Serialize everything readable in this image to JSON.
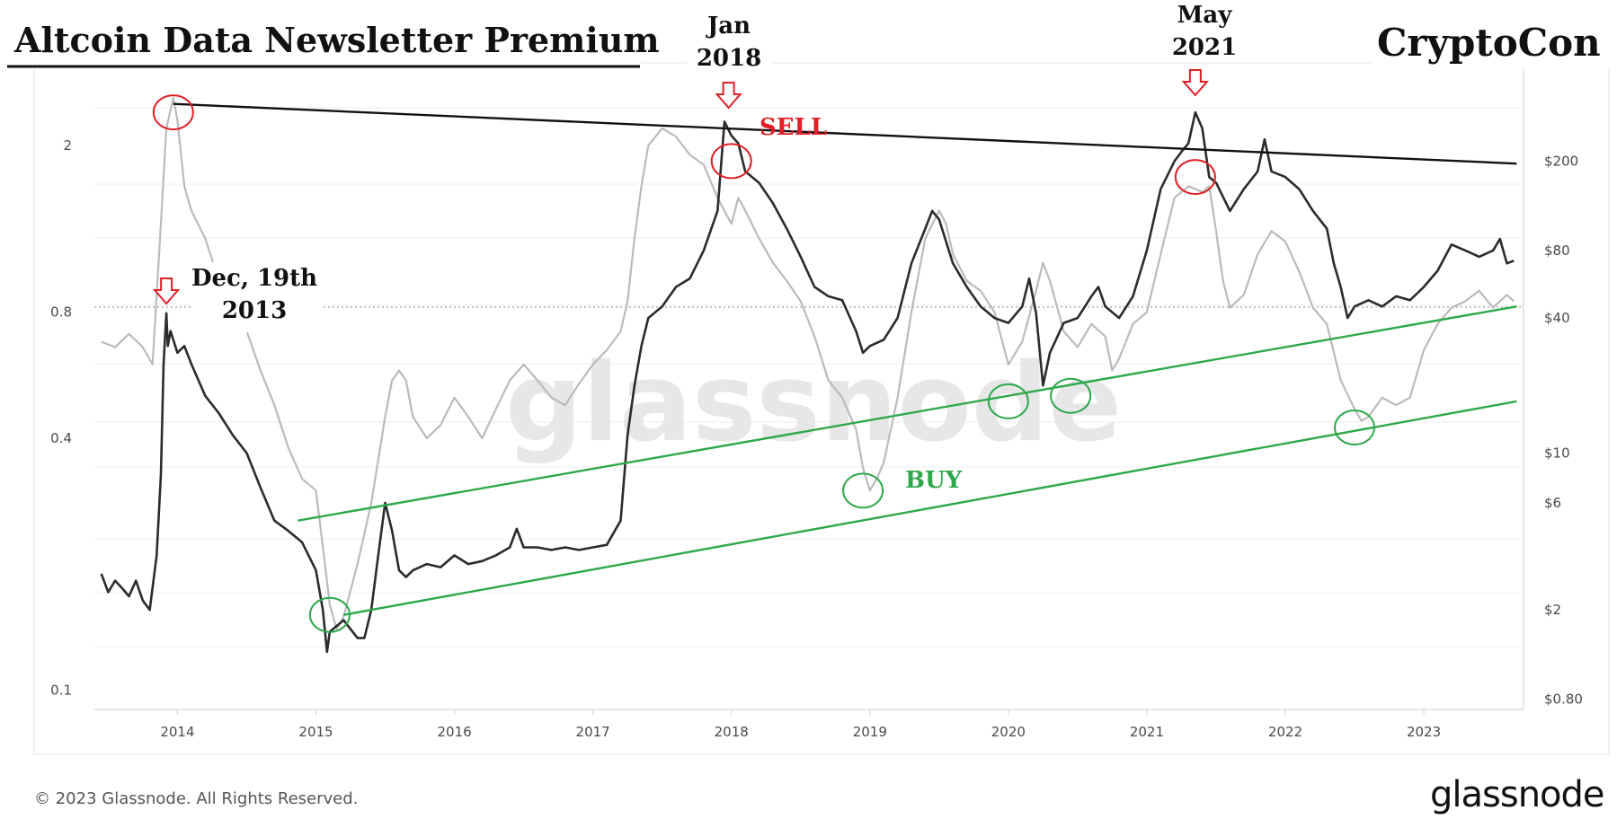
{
  "header": {
    "newsletter_title": "Altcoin Data Newsletter Premium",
    "author": "CryptoCon"
  },
  "watermark": "glassnode",
  "footer": {
    "copyright": "© 2023 Glassnode. All Rights Reserved.",
    "brand": "glassnode"
  },
  "colors": {
    "metric_line": "#bbbbbb",
    "price_line": "#2b2b2b",
    "sell": "#e01f26",
    "buy": "#2ea84a",
    "trend_top": "#111111"
  },
  "chart_data": {
    "type": "line",
    "x_ticks": [
      "2014",
      "2015",
      "2016",
      "2017",
      "2018",
      "2019",
      "2020",
      "2021",
      "2022",
      "2023"
    ],
    "y_left": {
      "scale": "log",
      "ticks": [
        "2",
        "0.8",
        "0.4",
        "0.1"
      ],
      "values": [
        2,
        0.8,
        0.4,
        0.1
      ]
    },
    "y_right": {
      "scale": "log",
      "ticks": [
        "$200",
        "$80",
        "$40",
        "$10",
        "$6",
        "$2",
        "$0.80"
      ],
      "values": [
        200,
        80,
        40,
        10,
        6,
        2,
        0.8
      ]
    },
    "series": [
      {
        "axis": "left",
        "color": "#bbbbbb",
        "points": [
          [
            2013.45,
            0.68
          ],
          [
            2013.55,
            0.66
          ],
          [
            2013.65,
            0.71
          ],
          [
            2013.75,
            0.66
          ],
          [
            2013.82,
            0.6
          ],
          [
            2013.88,
            1.3
          ],
          [
            2013.92,
            2.2
          ],
          [
            2013.97,
            2.6
          ],
          [
            2014.0,
            2.3
          ],
          [
            2014.05,
            1.6
          ],
          [
            2014.1,
            1.4
          ],
          [
            2014.2,
            1.2
          ],
          [
            2014.3,
            0.95
          ],
          [
            2014.4,
            0.85
          ],
          [
            2014.5,
            0.72
          ],
          [
            2014.6,
            0.58
          ],
          [
            2014.7,
            0.48
          ],
          [
            2014.8,
            0.38
          ],
          [
            2014.9,
            0.32
          ],
          [
            2015.0,
            0.3
          ],
          [
            2015.05,
            0.22
          ],
          [
            2015.1,
            0.16
          ],
          [
            2015.15,
            0.14
          ],
          [
            2015.2,
            0.15
          ],
          [
            2015.3,
            0.2
          ],
          [
            2015.4,
            0.28
          ],
          [
            2015.5,
            0.45
          ],
          [
            2015.55,
            0.55
          ],
          [
            2015.6,
            0.58
          ],
          [
            2015.65,
            0.55
          ],
          [
            2015.7,
            0.45
          ],
          [
            2015.8,
            0.4
          ],
          [
            2015.9,
            0.43
          ],
          [
            2016.0,
            0.5
          ],
          [
            2016.1,
            0.45
          ],
          [
            2016.2,
            0.4
          ],
          [
            2016.3,
            0.47
          ],
          [
            2016.4,
            0.55
          ],
          [
            2016.5,
            0.6
          ],
          [
            2016.6,
            0.55
          ],
          [
            2016.7,
            0.5
          ],
          [
            2016.8,
            0.48
          ],
          [
            2016.9,
            0.54
          ],
          [
            2017.0,
            0.6
          ],
          [
            2017.1,
            0.65
          ],
          [
            2017.2,
            0.72
          ],
          [
            2017.25,
            0.85
          ],
          [
            2017.3,
            1.2
          ],
          [
            2017.35,
            1.6
          ],
          [
            2017.4,
            2.0
          ],
          [
            2017.5,
            2.2
          ],
          [
            2017.6,
            2.1
          ],
          [
            2017.7,
            1.9
          ],
          [
            2017.8,
            1.8
          ],
          [
            2017.9,
            1.5
          ],
          [
            2018.0,
            1.3
          ],
          [
            2018.05,
            1.5
          ],
          [
            2018.1,
            1.4
          ],
          [
            2018.2,
            1.2
          ],
          [
            2018.3,
            1.05
          ],
          [
            2018.4,
            0.95
          ],
          [
            2018.5,
            0.85
          ],
          [
            2018.6,
            0.7
          ],
          [
            2018.7,
            0.55
          ],
          [
            2018.8,
            0.5
          ],
          [
            2018.9,
            0.42
          ],
          [
            2018.95,
            0.34
          ],
          [
            2019.0,
            0.3
          ],
          [
            2019.05,
            0.32
          ],
          [
            2019.1,
            0.35
          ],
          [
            2019.2,
            0.5
          ],
          [
            2019.3,
            0.8
          ],
          [
            2019.4,
            1.2
          ],
          [
            2019.5,
            1.4
          ],
          [
            2019.55,
            1.3
          ],
          [
            2019.6,
            1.1
          ],
          [
            2019.7,
            0.95
          ],
          [
            2019.8,
            0.9
          ],
          [
            2019.9,
            0.8
          ],
          [
            2020.0,
            0.6
          ],
          [
            2020.1,
            0.68
          ],
          [
            2020.2,
            0.9
          ],
          [
            2020.25,
            1.05
          ],
          [
            2020.3,
            0.95
          ],
          [
            2020.4,
            0.72
          ],
          [
            2020.5,
            0.66
          ],
          [
            2020.6,
            0.75
          ],
          [
            2020.7,
            0.7
          ],
          [
            2020.75,
            0.58
          ],
          [
            2020.8,
            0.62
          ],
          [
            2020.9,
            0.75
          ],
          [
            2021.0,
            0.8
          ],
          [
            2021.1,
            1.1
          ],
          [
            2021.2,
            1.5
          ],
          [
            2021.3,
            1.6
          ],
          [
            2021.4,
            1.55
          ],
          [
            2021.45,
            1.6
          ],
          [
            2021.5,
            1.25
          ],
          [
            2021.55,
            0.95
          ],
          [
            2021.6,
            0.82
          ],
          [
            2021.7,
            0.88
          ],
          [
            2021.8,
            1.1
          ],
          [
            2021.9,
            1.25
          ],
          [
            2022.0,
            1.18
          ],
          [
            2022.1,
            1.0
          ],
          [
            2022.2,
            0.82
          ],
          [
            2022.3,
            0.75
          ],
          [
            2022.4,
            0.55
          ],
          [
            2022.5,
            0.47
          ],
          [
            2022.55,
            0.44
          ],
          [
            2022.6,
            0.45
          ],
          [
            2022.7,
            0.5
          ],
          [
            2022.8,
            0.48
          ],
          [
            2022.9,
            0.5
          ],
          [
            2023.0,
            0.65
          ],
          [
            2023.1,
            0.75
          ],
          [
            2023.2,
            0.82
          ],
          [
            2023.3,
            0.85
          ],
          [
            2023.4,
            0.9
          ],
          [
            2023.5,
            0.82
          ],
          [
            2023.6,
            0.88
          ],
          [
            2023.65,
            0.85
          ]
        ]
      },
      {
        "axis": "right",
        "color": "#2b2b2b",
        "points": [
          [
            2013.45,
            2.9
          ],
          [
            2013.5,
            2.4
          ],
          [
            2013.55,
            2.7
          ],
          [
            2013.6,
            2.5
          ],
          [
            2013.65,
            2.3
          ],
          [
            2013.7,
            2.7
          ],
          [
            2013.75,
            2.2
          ],
          [
            2013.8,
            2.0
          ],
          [
            2013.85,
            3.5
          ],
          [
            2013.88,
            8
          ],
          [
            2013.9,
            25
          ],
          [
            2013.92,
            42
          ],
          [
            2013.93,
            30
          ],
          [
            2013.95,
            35
          ],
          [
            2013.97,
            32
          ],
          [
            2014.0,
            28
          ],
          [
            2014.05,
            30
          ],
          [
            2014.1,
            25
          ],
          [
            2014.2,
            18
          ],
          [
            2014.3,
            15
          ],
          [
            2014.4,
            12
          ],
          [
            2014.5,
            10
          ],
          [
            2014.6,
            7
          ],
          [
            2014.7,
            5
          ],
          [
            2014.8,
            4.5
          ],
          [
            2014.9,
            4
          ],
          [
            2015.0,
            3
          ],
          [
            2015.05,
            2
          ],
          [
            2015.08,
            1.3
          ],
          [
            2015.1,
            1.6
          ],
          [
            2015.2,
            1.8
          ],
          [
            2015.3,
            1.5
          ],
          [
            2015.35,
            1.5
          ],
          [
            2015.4,
            2
          ],
          [
            2015.45,
            3.5
          ],
          [
            2015.5,
            6
          ],
          [
            2015.55,
            4.5
          ],
          [
            2015.6,
            3
          ],
          [
            2015.65,
            2.8
          ],
          [
            2015.7,
            3
          ],
          [
            2015.8,
            3.2
          ],
          [
            2015.9,
            3.1
          ],
          [
            2016.0,
            3.5
          ],
          [
            2016.1,
            3.2
          ],
          [
            2016.2,
            3.3
          ],
          [
            2016.3,
            3.5
          ],
          [
            2016.4,
            3.8
          ],
          [
            2016.45,
            4.6
          ],
          [
            2016.5,
            3.8
          ],
          [
            2016.6,
            3.8
          ],
          [
            2016.7,
            3.7
          ],
          [
            2016.8,
            3.8
          ],
          [
            2016.9,
            3.7
          ],
          [
            2017.0,
            3.8
          ],
          [
            2017.1,
            3.9
          ],
          [
            2017.2,
            5
          ],
          [
            2017.25,
            12
          ],
          [
            2017.3,
            20
          ],
          [
            2017.35,
            30
          ],
          [
            2017.4,
            40
          ],
          [
            2017.5,
            45
          ],
          [
            2017.6,
            55
          ],
          [
            2017.7,
            60
          ],
          [
            2017.8,
            80
          ],
          [
            2017.9,
            120
          ],
          [
            2017.95,
            300
          ],
          [
            2018.0,
            260
          ],
          [
            2018.05,
            240
          ],
          [
            2018.1,
            180
          ],
          [
            2018.2,
            160
          ],
          [
            2018.3,
            130
          ],
          [
            2018.4,
            100
          ],
          [
            2018.5,
            75
          ],
          [
            2018.6,
            55
          ],
          [
            2018.7,
            50
          ],
          [
            2018.8,
            48
          ],
          [
            2018.9,
            35
          ],
          [
            2018.95,
            28
          ],
          [
            2019.0,
            30
          ],
          [
            2019.1,
            32
          ],
          [
            2019.2,
            40
          ],
          [
            2019.3,
            70
          ],
          [
            2019.4,
            100
          ],
          [
            2019.45,
            120
          ],
          [
            2019.5,
            110
          ],
          [
            2019.6,
            70
          ],
          [
            2019.7,
            55
          ],
          [
            2019.8,
            45
          ],
          [
            2019.9,
            40
          ],
          [
            2020.0,
            38
          ],
          [
            2020.1,
            45
          ],
          [
            2020.15,
            60
          ],
          [
            2020.2,
            42
          ],
          [
            2020.25,
            20
          ],
          [
            2020.3,
            28
          ],
          [
            2020.4,
            38
          ],
          [
            2020.5,
            40
          ],
          [
            2020.6,
            50
          ],
          [
            2020.65,
            55
          ],
          [
            2020.7,
            45
          ],
          [
            2020.8,
            40
          ],
          [
            2020.9,
            50
          ],
          [
            2021.0,
            80
          ],
          [
            2021.1,
            150
          ],
          [
            2021.2,
            200
          ],
          [
            2021.25,
            220
          ],
          [
            2021.3,
            240
          ],
          [
            2021.35,
            330
          ],
          [
            2021.4,
            280
          ],
          [
            2021.45,
            170
          ],
          [
            2021.5,
            160
          ],
          [
            2021.6,
            120
          ],
          [
            2021.7,
            150
          ],
          [
            2021.8,
            180
          ],
          [
            2021.85,
            250
          ],
          [
            2021.9,
            180
          ],
          [
            2022.0,
            170
          ],
          [
            2022.1,
            150
          ],
          [
            2022.2,
            120
          ],
          [
            2022.3,
            100
          ],
          [
            2022.35,
            70
          ],
          [
            2022.4,
            55
          ],
          [
            2022.45,
            40
          ],
          [
            2022.5,
            45
          ],
          [
            2022.6,
            48
          ],
          [
            2022.7,
            45
          ],
          [
            2022.8,
            50
          ],
          [
            2022.9,
            48
          ],
          [
            2023.0,
            55
          ],
          [
            2023.1,
            65
          ],
          [
            2023.2,
            85
          ],
          [
            2023.3,
            80
          ],
          [
            2023.4,
            75
          ],
          [
            2023.5,
            80
          ],
          [
            2023.55,
            90
          ],
          [
            2023.6,
            70
          ],
          [
            2023.65,
            72
          ]
        ]
      }
    ],
    "trendlines": [
      {
        "role": "top",
        "color": "#111111",
        "x": [
          2013.97,
          2023.67
        ],
        "y_right": [
          360,
          195
        ]
      },
      {
        "role": "channel-upper",
        "color": "#2ea84a",
        "x": [
          2014.87,
          2023.67
        ],
        "y_right": [
          5.0,
          45
        ]
      },
      {
        "role": "channel-lower",
        "color": "#2ea84a",
        "x": [
          2015.2,
          2023.67
        ],
        "y_right": [
          1.9,
          17
        ]
      }
    ],
    "annotations": {
      "labels": [
        {
          "text": [
            "Dec, 19th",
            "2013"
          ],
          "color": "#111111"
        },
        {
          "text": [
            "Jan",
            "2018"
          ],
          "color": "#111111"
        },
        {
          "text": [
            "May",
            "2021"
          ],
          "color": "#111111"
        },
        {
          "text": [
            "SELL"
          ],
          "color": "#e01f26"
        },
        {
          "text": [
            "BUY"
          ],
          "color": "#2ea84a"
        }
      ],
      "arrows": [
        {
          "x": 2013.92,
          "color": "#e01f26"
        },
        {
          "x": 2017.98,
          "color": "#e01f26"
        },
        {
          "x": 2021.35,
          "color": "#e01f26"
        }
      ],
      "circles": [
        {
          "x": 2013.97,
          "y_right": 330,
          "color": "#e01f26"
        },
        {
          "x": 2018.0,
          "y_right": 200,
          "color": "#e01f26"
        },
        {
          "x": 2021.35,
          "y_right": 170,
          "color": "#e01f26"
        },
        {
          "x": 2015.1,
          "y_right": 1.9,
          "color": "#2ea84a"
        },
        {
          "x": 2018.95,
          "y_right": 6.8,
          "color": "#2ea84a"
        },
        {
          "x": 2020.0,
          "y_right": 17,
          "color": "#2ea84a"
        },
        {
          "x": 2020.45,
          "y_right": 18,
          "color": "#2ea84a"
        },
        {
          "x": 2022.5,
          "y_right": 13,
          "color": "#2ea84a"
        }
      ]
    },
    "grid": true
  }
}
